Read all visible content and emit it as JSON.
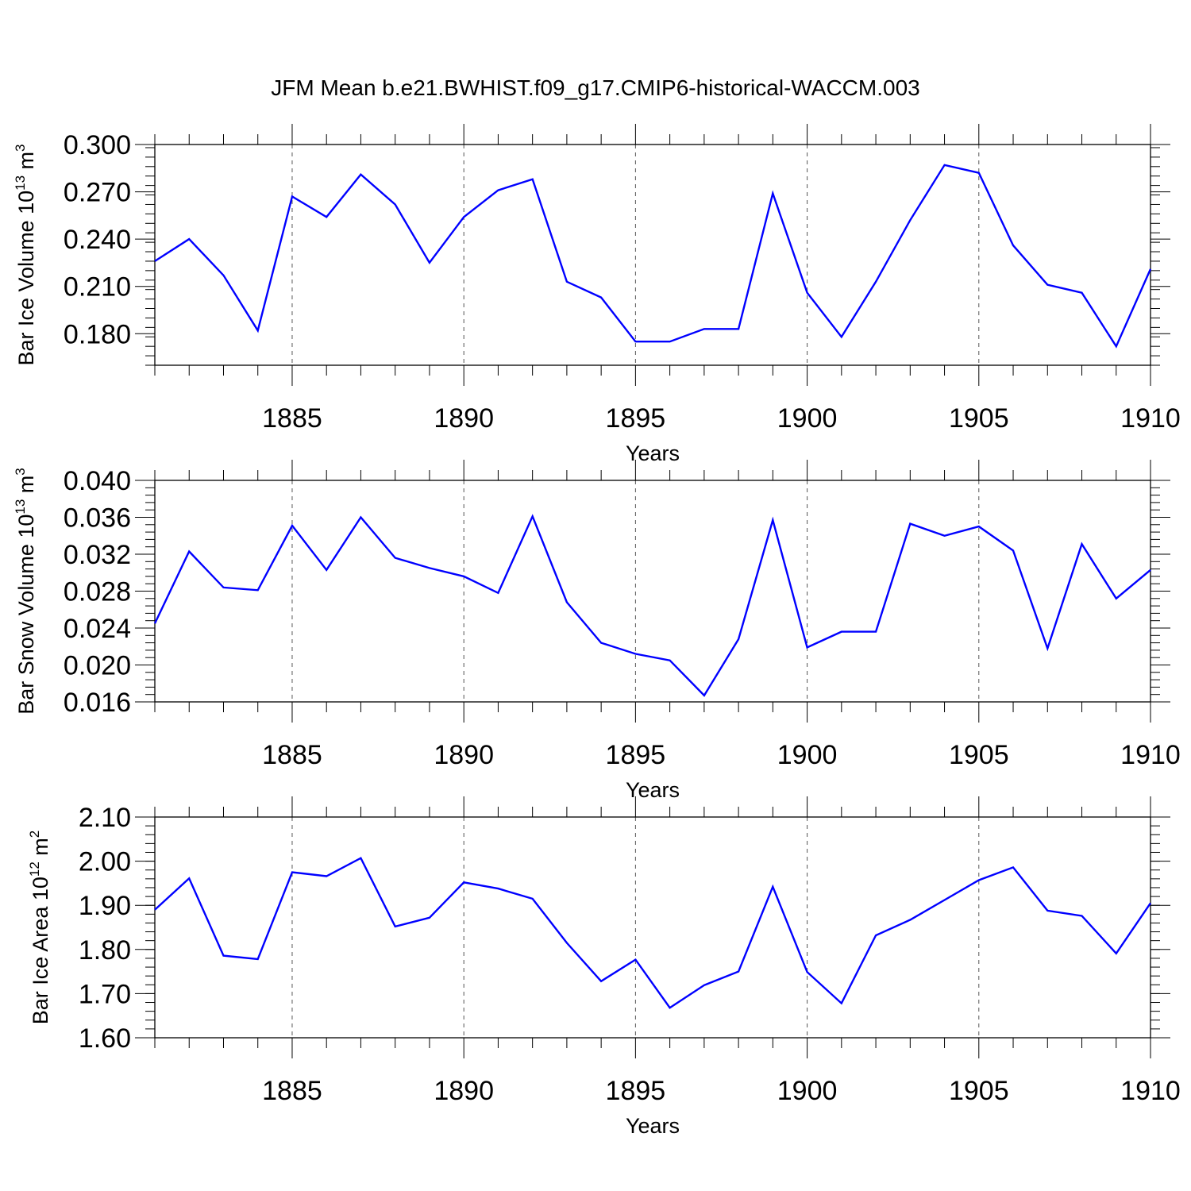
{
  "figure_title": "JFM Mean b.e21.BWHIST.f09_g17.CMIP6-historical-WACCM.003",
  "colors": {
    "line": "#0000ff",
    "axis": "#000000",
    "grid": "#555555"
  },
  "chart_data": [
    {
      "type": "line",
      "title": "JFM Mean b.e21.BWHIST.f09_g17.CMIP6-historical-WACCM.003",
      "ylabel": {
        "text": "Bar Ice Volume 10",
        "exponent": "13",
        "unit": "m",
        "unit_exponent": "3"
      },
      "xlabel": "Years",
      "xlim": [
        1881,
        1910
      ],
      "ylim": [
        0.16,
        0.3
      ],
      "yticks": [
        "0.180",
        "0.210",
        "0.240",
        "0.270",
        "0.300"
      ],
      "xticks": [
        "1885",
        "1890",
        "1895",
        "1900",
        "1905",
        "1910"
      ],
      "grid": "vertical dashed at major x ticks",
      "series": [
        {
          "name": "Bar Ice Volume",
          "x": [
            1881,
            1882,
            1883,
            1884,
            1885,
            1886,
            1887,
            1888,
            1889,
            1890,
            1891,
            1892,
            1893,
            1894,
            1895,
            1896,
            1897,
            1898,
            1899,
            1900,
            1901,
            1902,
            1903,
            1904,
            1905,
            1906,
            1907,
            1908,
            1909,
            1910
          ],
          "values": [
            0.226,
            0.24,
            0.217,
            0.182,
            0.267,
            0.254,
            0.281,
            0.262,
            0.225,
            0.254,
            0.271,
            0.278,
            0.213,
            0.203,
            0.175,
            0.175,
            0.183,
            0.183,
            0.269,
            0.206,
            0.178,
            0.213,
            0.252,
            0.287,
            0.282,
            0.236,
            0.211,
            0.206,
            0.172,
            0.221
          ]
        }
      ]
    },
    {
      "type": "line",
      "ylabel": {
        "text": "Bar Snow Volume 10",
        "exponent": "13",
        "unit": "m",
        "unit_exponent": "3"
      },
      "xlabel": "Years",
      "xlim": [
        1881,
        1910
      ],
      "ylim": [
        0.016,
        0.04
      ],
      "yticks": [
        "0.016",
        "0.020",
        "0.024",
        "0.028",
        "0.032",
        "0.036",
        "0.040"
      ],
      "xticks": [
        "1885",
        "1890",
        "1895",
        "1900",
        "1905",
        "1910"
      ],
      "grid": "vertical dashed at major x ticks",
      "series": [
        {
          "name": "Bar Snow Volume",
          "x": [
            1881,
            1882,
            1883,
            1884,
            1885,
            1886,
            1887,
            1888,
            1889,
            1890,
            1891,
            1892,
            1893,
            1894,
            1895,
            1896,
            1897,
            1898,
            1899,
            1900,
            1901,
            1902,
            1903,
            1904,
            1905,
            1906,
            1907,
            1908,
            1909,
            1910
          ],
          "values": [
            0.0245,
            0.0323,
            0.0284,
            0.0281,
            0.0351,
            0.0303,
            0.036,
            0.0316,
            0.0305,
            0.0296,
            0.0278,
            0.0361,
            0.0268,
            0.0224,
            0.0212,
            0.0205,
            0.0167,
            0.0228,
            0.0357,
            0.0219,
            0.0236,
            0.0236,
            0.0353,
            0.034,
            0.035,
            0.0324,
            0.0218,
            0.0331,
            0.0272,
            0.0303
          ]
        }
      ]
    },
    {
      "type": "line",
      "ylabel": {
        "text": "Bar Ice Area 10",
        "exponent": "12",
        "unit": "m",
        "unit_exponent": "2"
      },
      "xlabel": "Years",
      "xlim": [
        1881,
        1910
      ],
      "ylim": [
        1.6,
        2.1
      ],
      "yticks": [
        "1.60",
        "1.70",
        "1.80",
        "1.90",
        "2.00",
        "2.10"
      ],
      "xticks": [
        "1885",
        "1890",
        "1895",
        "1900",
        "1905",
        "1910"
      ],
      "grid": "vertical dashed at major x ticks",
      "series": [
        {
          "name": "Bar Ice Area",
          "x": [
            1881,
            1882,
            1883,
            1884,
            1885,
            1886,
            1887,
            1888,
            1889,
            1890,
            1891,
            1892,
            1893,
            1894,
            1895,
            1896,
            1897,
            1898,
            1899,
            1900,
            1901,
            1902,
            1903,
            1904,
            1905,
            1906,
            1907,
            1908,
            1909,
            1910
          ],
          "values": [
            1.89,
            1.961,
            1.786,
            1.778,
            1.975,
            1.966,
            2.007,
            1.852,
            1.872,
            1.952,
            1.938,
            1.915,
            1.815,
            1.728,
            1.777,
            1.668,
            1.719,
            1.75,
            1.942,
            1.749,
            1.678,
            1.832,
            1.867,
            1.912,
            1.957,
            1.986,
            1.888,
            1.876,
            1.791,
            1.905
          ]
        }
      ]
    }
  ]
}
